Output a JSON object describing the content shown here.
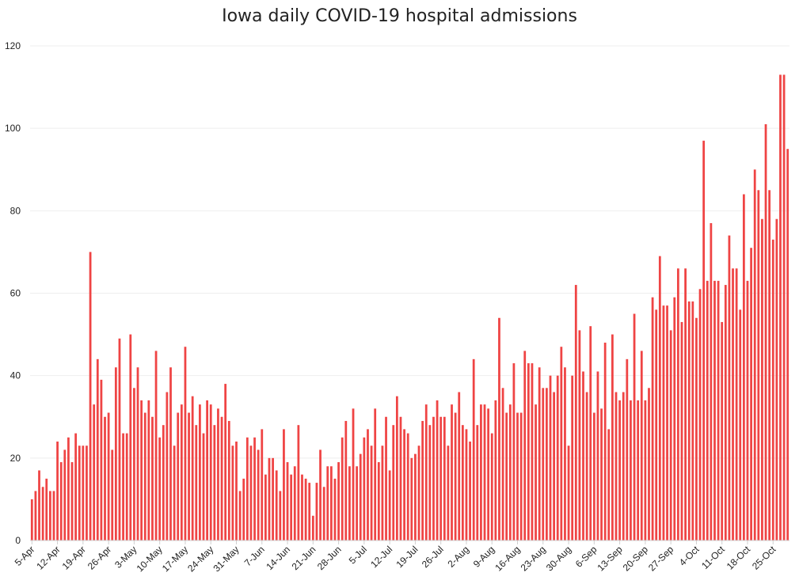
{
  "chart_data": {
    "type": "bar",
    "title": "Iowa daily COVID-19 hospital admissions",
    "xlabel": "",
    "ylabel": "",
    "ylim": [
      0,
      120
    ],
    "y_ticks": [
      0,
      20,
      40,
      60,
      80,
      100,
      120
    ],
    "grid": true,
    "legend": "none",
    "bar_color": "#ef4444",
    "start_date": "5-Apr",
    "x_tick_labels": [
      "5-Apr",
      "12-Apr",
      "19-Apr",
      "26-Apr",
      "3-May",
      "10-May",
      "17-May",
      "24-May",
      "31-May",
      "7-Jun",
      "14-Jun",
      "21-Jun",
      "28-Jun",
      "5-Jul",
      "12-Jul",
      "19-Jul",
      "26-Jul",
      "2-Aug",
      "9-Aug",
      "16-Aug",
      "23-Aug",
      "30-Aug",
      "6-Sep",
      "13-Sep",
      "20-Sep",
      "27-Sep",
      "4-Oct",
      "11-Oct",
      "18-Oct",
      "25-Oct"
    ],
    "values": [
      10,
      12,
      17,
      13,
      15,
      12,
      12,
      24,
      19,
      22,
      25,
      19,
      26,
      23,
      23,
      23,
      70,
      33,
      44,
      39,
      30,
      31,
      22,
      42,
      49,
      26,
      26,
      50,
      37,
      42,
      34,
      31,
      34,
      30,
      46,
      25,
      28,
      36,
      42,
      23,
      31,
      33,
      47,
      31,
      35,
      28,
      33,
      26,
      34,
      33,
      28,
      32,
      30,
      38,
      29,
      23,
      24,
      12,
      15,
      25,
      23,
      25,
      22,
      27,
      16,
      20,
      20,
      17,
      12,
      27,
      19,
      16,
      18,
      28,
      16,
      15,
      14,
      6,
      14,
      22,
      13,
      18,
      18,
      15,
      19,
      25,
      29,
      18,
      32,
      18,
      21,
      25,
      27,
      23,
      32,
      19,
      23,
      30,
      17,
      28,
      35,
      30,
      27,
      26,
      20,
      21,
      23,
      29,
      33,
      28,
      30,
      34,
      30,
      30,
      23,
      33,
      31,
      36,
      28,
      27,
      24,
      44,
      28,
      33,
      33,
      32,
      26,
      34,
      54,
      37,
      31,
      33,
      43,
      31,
      31,
      46,
      43,
      43,
      33,
      42,
      37,
      37,
      40,
      36,
      40,
      47,
      42,
      23,
      40,
      62,
      51,
      41,
      36,
      52,
      31,
      41,
      32,
      48,
      27,
      50,
      36,
      34,
      36,
      44,
      34,
      55,
      34,
      46,
      34,
      37,
      59,
      56,
      69,
      57,
      57,
      51,
      59,
      66,
      53,
      66,
      58,
      58,
      54,
      61,
      97,
      63,
      77,
      63,
      63,
      53,
      62,
      74,
      66,
      66,
      56,
      84,
      63,
      71,
      90,
      85,
      78,
      101,
      85,
      73,
      78,
      113,
      113,
      95
    ]
  }
}
